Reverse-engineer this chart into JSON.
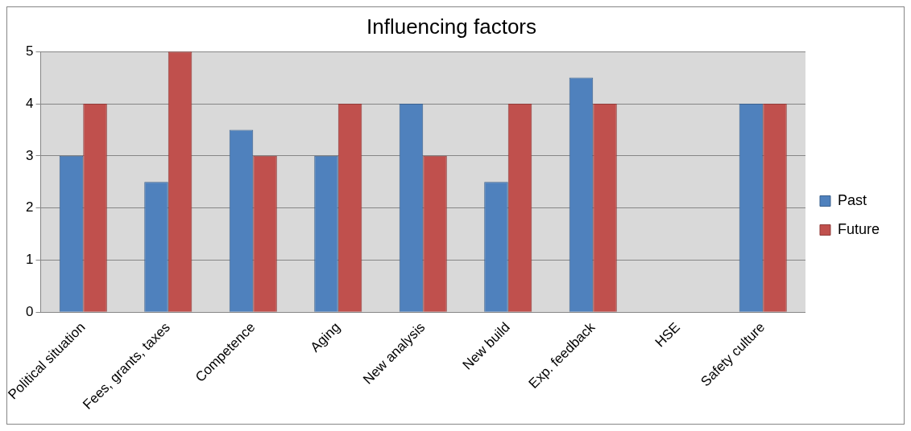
{
  "chart_data": {
    "type": "bar",
    "title": "Influencing factors",
    "categories": [
      "Political situation",
      "Fees, grants, taxes",
      "Competence",
      "Aging",
      "New analysis",
      "New build",
      "Exp. feedback",
      "HSE",
      "Safety culture"
    ],
    "series": [
      {
        "name": "Past",
        "color": "#4f81bd",
        "values": [
          3,
          2.5,
          3.5,
          3,
          4,
          2.5,
          4.5,
          null,
          4
        ]
      },
      {
        "name": "Future",
        "color": "#c0504d",
        "values": [
          4,
          5,
          3,
          4,
          3,
          4,
          4,
          null,
          4
        ]
      }
    ],
    "ylim": [
      0,
      5
    ],
    "yticks": [
      0,
      1,
      2,
      3,
      4,
      5
    ],
    "grid": "y",
    "legend": "right"
  }
}
